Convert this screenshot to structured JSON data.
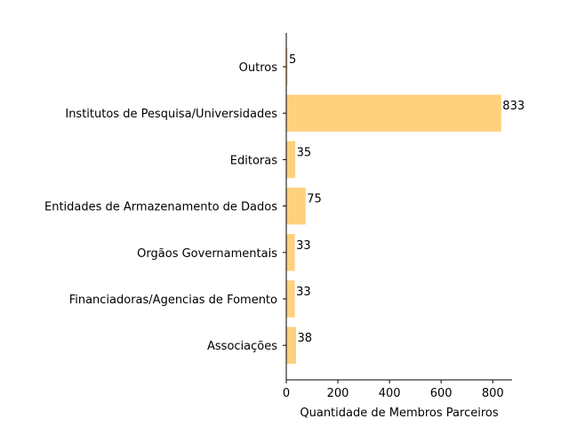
{
  "chart_data": {
    "type": "bar",
    "orientation": "horizontal",
    "categories": [
      "Outros",
      "Institutos de Pesquisa/Universidades",
      "Editoras",
      "Entidades de Armazenamento de Dados",
      "Orgãos Governamentais",
      "Financiadoras/Agencias de Fomento",
      "Associações"
    ],
    "values": [
      5,
      833,
      35,
      75,
      33,
      33,
      38
    ],
    "value_labels": [
      "5",
      "833",
      "35",
      "75",
      "33",
      "33",
      "38"
    ],
    "xlabel": "Quantidade de Membros Parceiros",
    "xlim": [
      0,
      875
    ],
    "xticks": [
      0,
      200,
      400,
      600,
      800
    ],
    "grid": false,
    "bar_color": "#ffd17e",
    "axis_color": "#000000"
  }
}
